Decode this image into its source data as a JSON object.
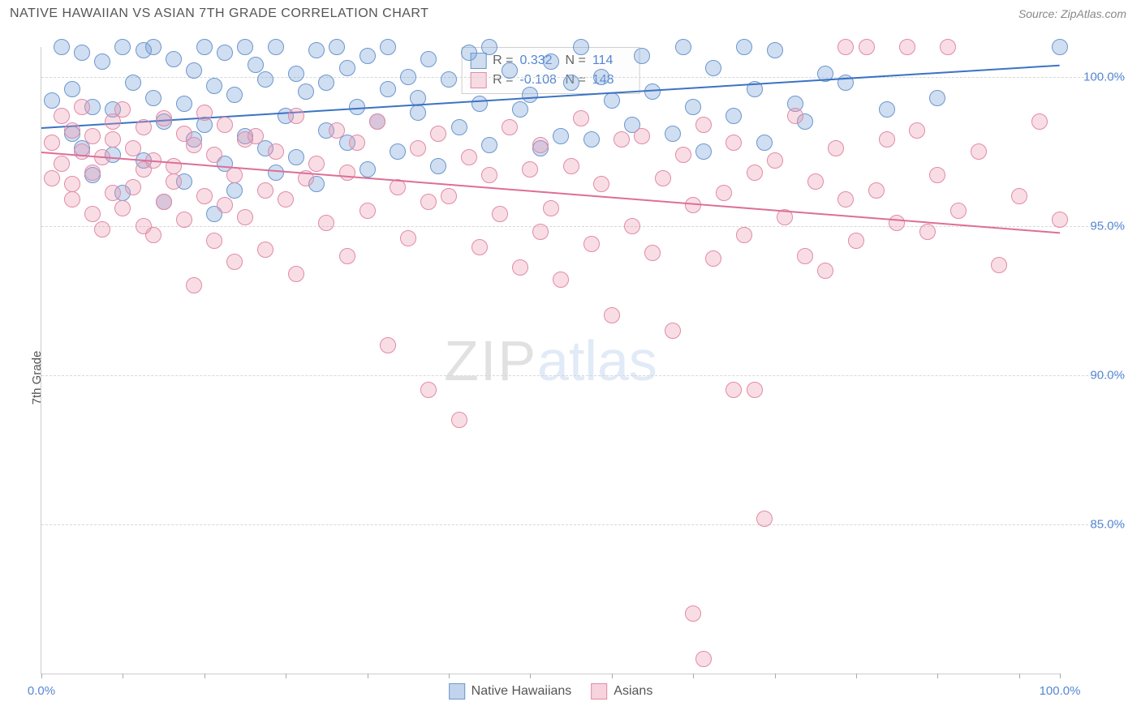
{
  "header": {
    "title": "NATIVE HAWAIIAN VS ASIAN 7TH GRADE CORRELATION CHART",
    "source": "Source: ZipAtlas.com"
  },
  "ylabel": "7th Grade",
  "watermark": {
    "part1": "ZIP",
    "part2": "atlas"
  },
  "chart": {
    "type": "scatter",
    "xlim": [
      0,
      100
    ],
    "ylim": [
      80,
      101
    ],
    "yticks": [
      85.0,
      90.0,
      95.0,
      100.0
    ],
    "ytick_labels": [
      "85.0%",
      "90.0%",
      "95.0%",
      "100.0%"
    ],
    "xtick_positions": [
      0,
      8,
      16,
      24,
      32,
      40,
      48,
      56,
      64,
      72,
      80,
      88,
      96,
      100
    ],
    "xmin_label": "0.0%",
    "xmax_label": "100.0%",
    "background_color": "#ffffff",
    "grid_color": "#d8d8d8",
    "marker_radius": 10,
    "series": [
      {
        "name": "Native Hawaiians",
        "fill": "rgba(120,160,215,0.35)",
        "stroke": "#6b97ce",
        "trend": {
          "y_at_x0": 98.3,
          "y_at_x100": 100.4,
          "color": "#3b73c4"
        },
        "stats": {
          "R": "0.332",
          "N": "114"
        },
        "points": [
          [
            1,
            99.2
          ],
          [
            2,
            101
          ],
          [
            3,
            98.1
          ],
          [
            3,
            99.6
          ],
          [
            4,
            100.8
          ],
          [
            4,
            97.6
          ],
          [
            5,
            96.7
          ],
          [
            5,
            99.0
          ],
          [
            6,
            100.5
          ],
          [
            7,
            97.4
          ],
          [
            7,
            98.9
          ],
          [
            8,
            101
          ],
          [
            8,
            96.1
          ],
          [
            9,
            99.8
          ],
          [
            10,
            100.9
          ],
          [
            10,
            97.2
          ],
          [
            11,
            99.3
          ],
          [
            11,
            101
          ],
          [
            12,
            95.8
          ],
          [
            12,
            98.5
          ],
          [
            13,
            100.6
          ],
          [
            14,
            96.5
          ],
          [
            14,
            99.1
          ],
          [
            15,
            97.9
          ],
          [
            15,
            100.2
          ],
          [
            16,
            101
          ],
          [
            16,
            98.4
          ],
          [
            17,
            95.4
          ],
          [
            17,
            99.7
          ],
          [
            18,
            100.8
          ],
          [
            18,
            97.1
          ],
          [
            19,
            96.2
          ],
          [
            19,
            99.4
          ],
          [
            20,
            101
          ],
          [
            20,
            98.0
          ],
          [
            21,
            100.4
          ],
          [
            22,
            97.6
          ],
          [
            22,
            99.9
          ],
          [
            23,
            96.8
          ],
          [
            23,
            101
          ],
          [
            24,
            98.7
          ],
          [
            25,
            100.1
          ],
          [
            25,
            97.3
          ],
          [
            26,
            99.5
          ],
          [
            27,
            100.9
          ],
          [
            27,
            96.4
          ],
          [
            28,
            98.2
          ],
          [
            28,
            99.8
          ],
          [
            29,
            101
          ],
          [
            30,
            97.8
          ],
          [
            30,
            100.3
          ],
          [
            31,
            99.0
          ],
          [
            32,
            96.9
          ],
          [
            32,
            100.7
          ],
          [
            33,
            98.5
          ],
          [
            34,
            99.6
          ],
          [
            34,
            101
          ],
          [
            35,
            97.5
          ],
          [
            36,
            100.0
          ],
          [
            37,
            98.8
          ],
          [
            37,
            99.3
          ],
          [
            38,
            100.6
          ],
          [
            39,
            97.0
          ],
          [
            40,
            99.9
          ],
          [
            41,
            98.3
          ],
          [
            42,
            100.8
          ],
          [
            43,
            99.1
          ],
          [
            44,
            97.7
          ],
          [
            44,
            101
          ],
          [
            46,
            100.2
          ],
          [
            47,
            98.9
          ],
          [
            48,
            99.4
          ],
          [
            49,
            97.6
          ],
          [
            50,
            100.5
          ],
          [
            51,
            98.0
          ],
          [
            52,
            99.8
          ],
          [
            53,
            101
          ],
          [
            54,
            97.9
          ],
          [
            55,
            100.0
          ],
          [
            56,
            99.2
          ],
          [
            58,
            98.4
          ],
          [
            59,
            100.7
          ],
          [
            60,
            99.5
          ],
          [
            62,
            98.1
          ],
          [
            63,
            101
          ],
          [
            64,
            99.0
          ],
          [
            65,
            97.5
          ],
          [
            66,
            100.3
          ],
          [
            68,
            98.7
          ],
          [
            69,
            101
          ],
          [
            70,
            99.6
          ],
          [
            71,
            97.8
          ],
          [
            72,
            100.9
          ],
          [
            74,
            99.1
          ],
          [
            75,
            98.5
          ],
          [
            77,
            100.1
          ],
          [
            79,
            99.8
          ],
          [
            83,
            98.9
          ],
          [
            88,
            99.3
          ],
          [
            100,
            101
          ]
        ]
      },
      {
        "name": "Asians",
        "fill": "rgba(235,150,175,0.32)",
        "stroke": "#e08ba8",
        "trend": {
          "y_at_x0": 97.5,
          "y_at_x100": 94.8,
          "color": "#de6e96"
        },
        "stats": {
          "R": "-0.108",
          "N": "148"
        },
        "points": [
          [
            1,
            97.8
          ],
          [
            1,
            96.6
          ],
          [
            2,
            98.7
          ],
          [
            2,
            97.1
          ],
          [
            3,
            95.9
          ],
          [
            3,
            98.2
          ],
          [
            3,
            96.4
          ],
          [
            4,
            97.5
          ],
          [
            4,
            99.0
          ],
          [
            5,
            95.4
          ],
          [
            5,
            98.0
          ],
          [
            5,
            96.8
          ],
          [
            6,
            97.3
          ],
          [
            6,
            94.9
          ],
          [
            7,
            98.5
          ],
          [
            7,
            96.1
          ],
          [
            7,
            97.9
          ],
          [
            8,
            95.6
          ],
          [
            8,
            98.9
          ],
          [
            9,
            96.3
          ],
          [
            9,
            97.6
          ],
          [
            10,
            95.0
          ],
          [
            10,
            98.3
          ],
          [
            10,
            96.9
          ],
          [
            11,
            97.2
          ],
          [
            11,
            94.7
          ],
          [
            12,
            98.6
          ],
          [
            12,
            95.8
          ],
          [
            13,
            97.0
          ],
          [
            13,
            96.5
          ],
          [
            14,
            98.1
          ],
          [
            14,
            95.2
          ],
          [
            15,
            97.7
          ],
          [
            15,
            93.0
          ],
          [
            16,
            96.0
          ],
          [
            16,
            98.8
          ],
          [
            17,
            94.5
          ],
          [
            17,
            97.4
          ],
          [
            18,
            95.7
          ],
          [
            18,
            98.4
          ],
          [
            19,
            96.7
          ],
          [
            19,
            93.8
          ],
          [
            20,
            97.9
          ],
          [
            20,
            95.3
          ],
          [
            21,
            98.0
          ],
          [
            22,
            96.2
          ],
          [
            22,
            94.2
          ],
          [
            23,
            97.5
          ],
          [
            24,
            95.9
          ],
          [
            25,
            98.7
          ],
          [
            25,
            93.4
          ],
          [
            26,
            96.6
          ],
          [
            27,
            97.1
          ],
          [
            28,
            95.1
          ],
          [
            29,
            98.2
          ],
          [
            30,
            94.0
          ],
          [
            30,
            96.8
          ],
          [
            31,
            97.8
          ],
          [
            32,
            95.5
          ],
          [
            33,
            98.5
          ],
          [
            34,
            91.0
          ],
          [
            35,
            96.3
          ],
          [
            36,
            94.6
          ],
          [
            37,
            97.6
          ],
          [
            38,
            89.5
          ],
          [
            38,
            95.8
          ],
          [
            39,
            98.1
          ],
          [
            40,
            96.0
          ],
          [
            41,
            88.5
          ],
          [
            42,
            97.3
          ],
          [
            43,
            94.3
          ],
          [
            44,
            96.7
          ],
          [
            45,
            95.4
          ],
          [
            46,
            98.3
          ],
          [
            47,
            93.6
          ],
          [
            48,
            96.9
          ],
          [
            49,
            97.7
          ],
          [
            49,
            94.8
          ],
          [
            50,
            95.6
          ],
          [
            51,
            93.2
          ],
          [
            52,
            97.0
          ],
          [
            53,
            98.6
          ],
          [
            54,
            94.4
          ],
          [
            55,
            96.4
          ],
          [
            56,
            92.0
          ],
          [
            57,
            97.9
          ],
          [
            58,
            95.0
          ],
          [
            59,
            98.0
          ],
          [
            60,
            94.1
          ],
          [
            61,
            96.6
          ],
          [
            62,
            91.5
          ],
          [
            63,
            97.4
          ],
          [
            64,
            95.7
          ],
          [
            64,
            82.0
          ],
          [
            65,
            98.4
          ],
          [
            65,
            80.5
          ],
          [
            66,
            93.9
          ],
          [
            67,
            96.1
          ],
          [
            68,
            97.8
          ],
          [
            68,
            89.5
          ],
          [
            69,
            94.7
          ],
          [
            70,
            96.8
          ],
          [
            70,
            89.5
          ],
          [
            71,
            85.2
          ],
          [
            72,
            97.2
          ],
          [
            73,
            95.3
          ],
          [
            74,
            98.7
          ],
          [
            75,
            94.0
          ],
          [
            76,
            96.5
          ],
          [
            77,
            93.5
          ],
          [
            78,
            97.6
          ],
          [
            79,
            95.9
          ],
          [
            79,
            101
          ],
          [
            80,
            94.5
          ],
          [
            81,
            101
          ],
          [
            82,
            96.2
          ],
          [
            83,
            97.9
          ],
          [
            84,
            95.1
          ],
          [
            85,
            101
          ],
          [
            86,
            98.2
          ],
          [
            87,
            94.8
          ],
          [
            88,
            96.7
          ],
          [
            89,
            101
          ],
          [
            90,
            95.5
          ],
          [
            92,
            97.5
          ],
          [
            94,
            93.7
          ],
          [
            96,
            96.0
          ],
          [
            98,
            98.5
          ],
          [
            100,
            95.2
          ]
        ]
      }
    ]
  },
  "legend": {
    "items": [
      {
        "label": "Native Hawaiians",
        "fill": "rgba(120,160,215,0.45)",
        "stroke": "#6b97ce"
      },
      {
        "label": "Asians",
        "fill": "rgba(235,150,175,0.42)",
        "stroke": "#e08ba8"
      }
    ]
  }
}
